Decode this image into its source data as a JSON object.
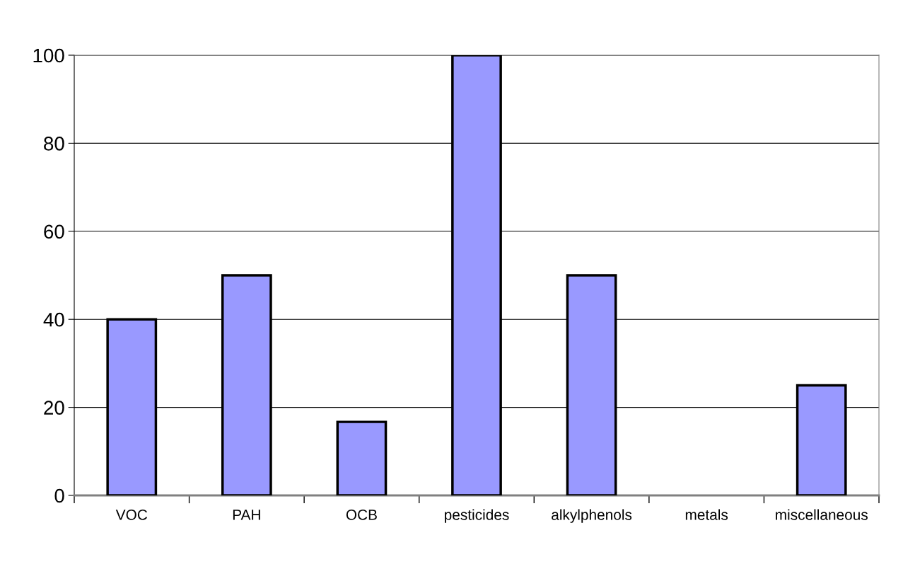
{
  "chart_data": {
    "type": "bar",
    "categories": [
      "VOC",
      "PAH",
      "OCB",
      "pesticides",
      "alkylphenols",
      "metals",
      "miscellaneous"
    ],
    "values": [
      40,
      50,
      16.7,
      100,
      50,
      0,
      25
    ],
    "color": "#9999ff",
    "ylim": [
      0,
      100
    ],
    "yticks": [
      0,
      20,
      40,
      60,
      80,
      100
    ],
    "grid": "y"
  }
}
